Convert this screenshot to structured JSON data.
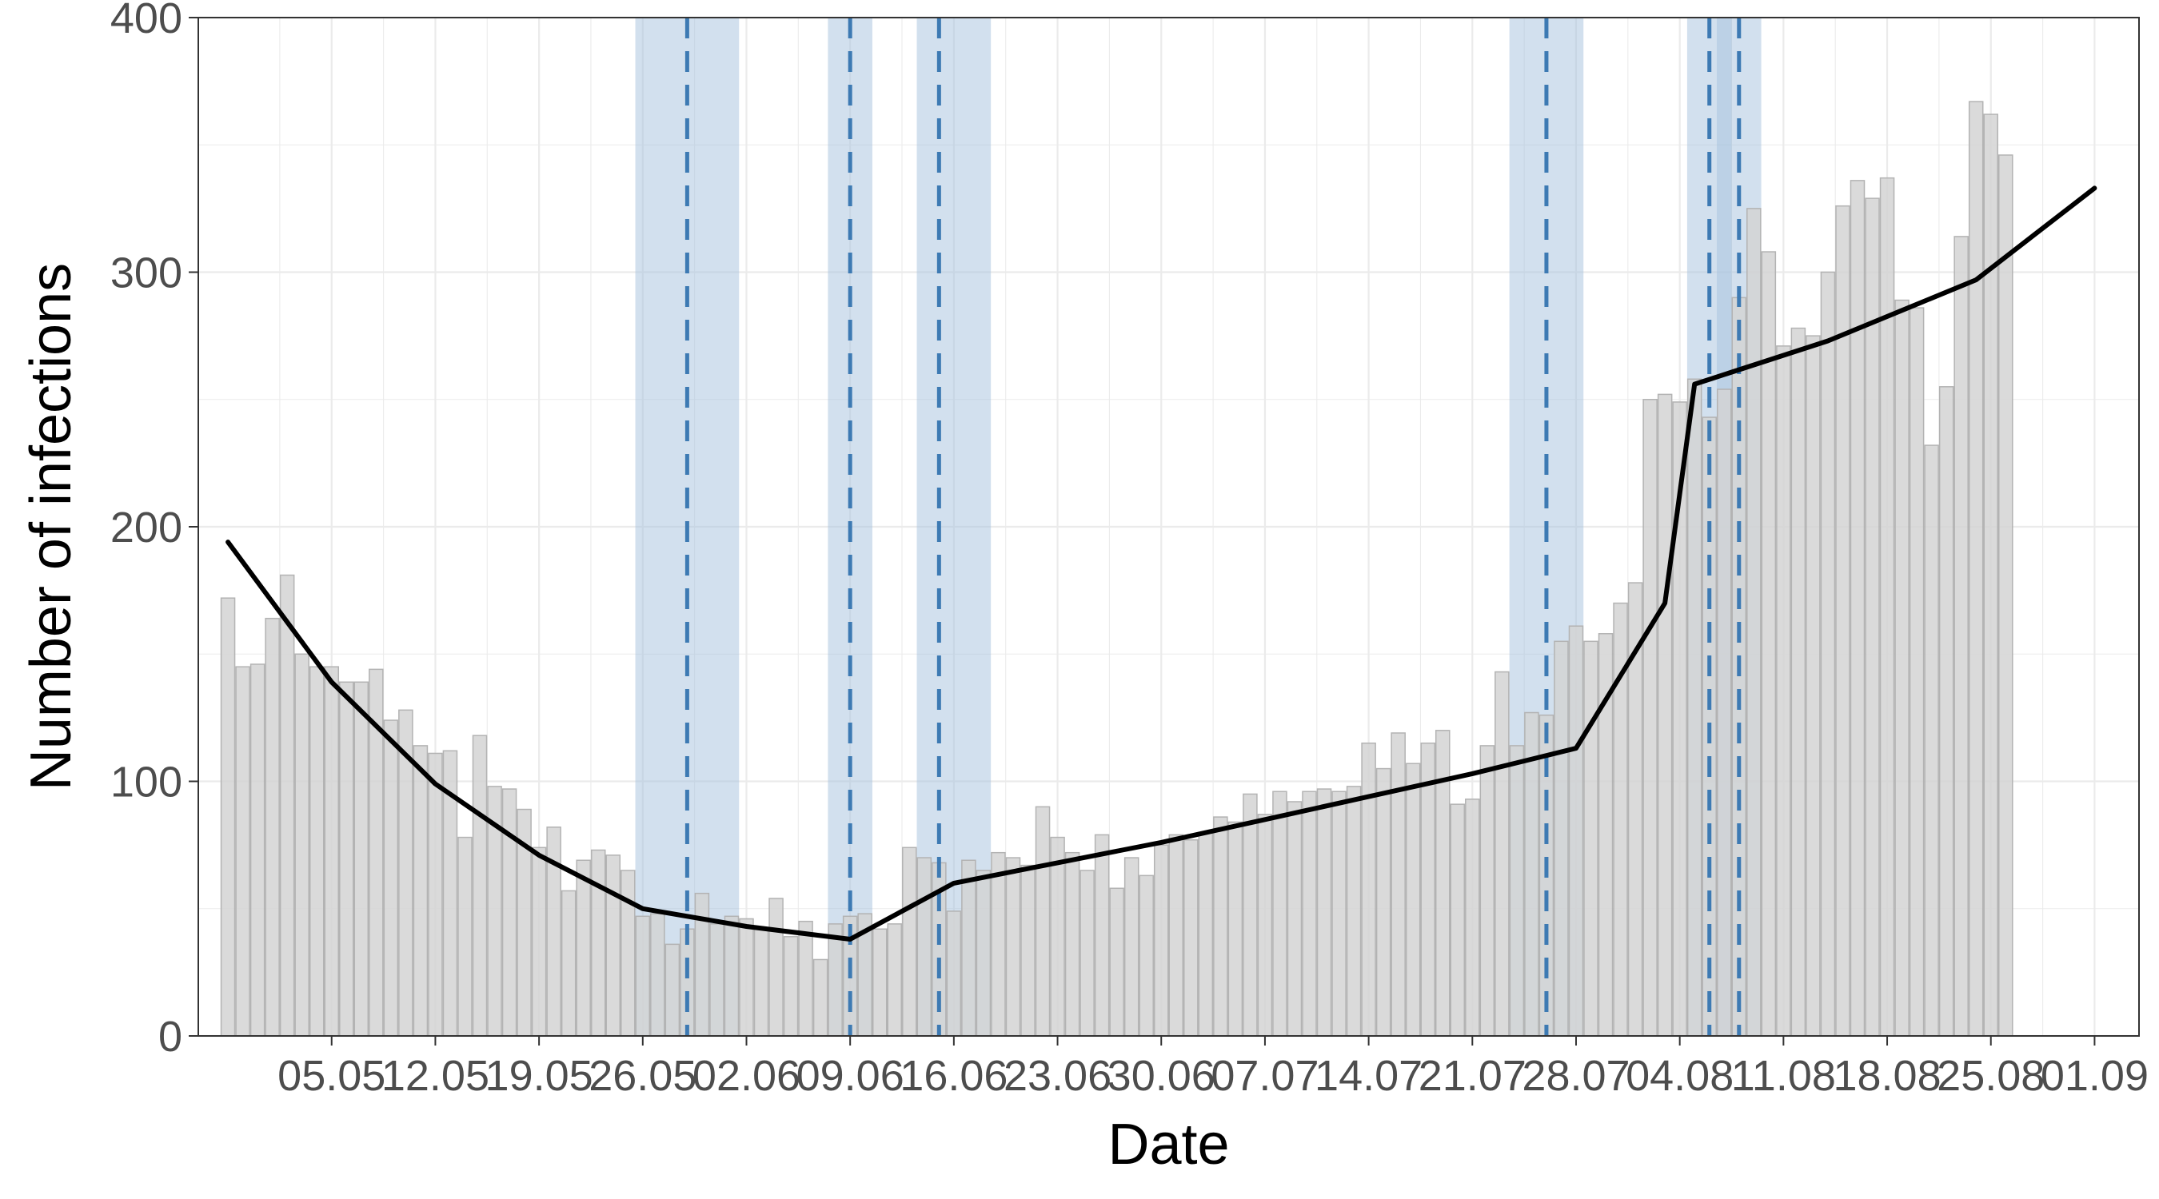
{
  "chart_data": {
    "type": "bar",
    "xlabel": "Date",
    "ylabel": "Number of infections",
    "ylim": [
      0,
      400
    ],
    "y_ticks": [
      0,
      100,
      200,
      300,
      400
    ],
    "x_ticks": [
      "05.05",
      "12.05",
      "19.05",
      "26.05",
      "02.06",
      "09.06",
      "16.06",
      "23.06",
      "30.06",
      "07.07",
      "14.07",
      "21.07",
      "28.07",
      "04.08",
      "11.08",
      "18.08",
      "25.08",
      "01.09"
    ],
    "x_range": [
      "2020-04-26",
      "2020-09-04"
    ],
    "grid": true,
    "bars": {
      "start_date": "2020-04-28",
      "values": [
        172,
        145,
        146,
        164,
        181,
        150,
        145,
        145,
        139,
        139,
        144,
        124,
        128,
        114,
        111,
        112,
        78,
        118,
        98,
        97,
        89,
        74,
        82,
        57,
        69,
        73,
        71,
        65,
        47,
        48,
        36,
        42,
        56,
        44,
        47,
        46,
        42,
        54,
        39,
        45,
        30,
        44,
        47,
        48,
        42,
        44,
        74,
        70,
        68,
        49,
        69,
        65,
        72,
        70,
        67,
        90,
        78,
        72,
        65,
        79,
        58,
        70,
        63,
        75,
        79,
        77,
        80,
        86,
        84,
        95,
        87,
        96,
        92,
        96,
        97,
        96,
        98,
        115,
        105,
        119,
        107,
        115,
        120,
        91,
        93,
        114,
        143,
        114,
        127,
        126,
        155,
        161,
        155,
        158,
        170,
        178,
        250,
        252,
        249,
        258,
        243,
        254,
        290,
        325,
        308,
        271,
        278,
        275,
        300,
        326,
        336,
        329,
        337,
        289,
        286,
        232,
        255,
        314,
        367,
        362,
        346
      ]
    },
    "trend_line": {
      "x": [
        "2020-04-28",
        "2020-05-05",
        "2020-05-12",
        "2020-05-19",
        "2020-05-26",
        "2020-06-02",
        "2020-06-09",
        "2020-06-16",
        "2020-06-23",
        "2020-06-30",
        "2020-07-07",
        "2020-07-14",
        "2020-07-21",
        "2020-07-28",
        "2020-08-03",
        "2020-08-05",
        "2020-08-14",
        "2020-08-24",
        "2020-09-01"
      ],
      "y": [
        194,
        139,
        99,
        71,
        50,
        43,
        38,
        60,
        68,
        76,
        85,
        94,
        103,
        113,
        170,
        256,
        273,
        297,
        333
      ]
    },
    "breakpoints": [
      {
        "date": "2020-05-29",
        "ci": [
          "2020-05-26",
          "2020-06-01"
        ]
      },
      {
        "date": "2020-06-09",
        "ci": [
          "2020-06-08",
          "2020-06-10"
        ]
      },
      {
        "date": "2020-06-15",
        "ci": [
          "2020-06-14",
          "2020-06-18"
        ]
      },
      {
        "date": "2020-07-26",
        "ci": [
          "2020-07-24",
          "2020-07-28"
        ]
      },
      {
        "date": "2020-08-06",
        "ci": [
          "2020-08-05",
          "2020-08-07"
        ]
      },
      {
        "date": "2020-08-08",
        "ci": [
          "2020-08-07",
          "2020-08-09"
        ]
      }
    ],
    "colors": {
      "bar_fill": "#d3d3d3",
      "bar_stroke": "#b3b3b3",
      "trend": "#000000",
      "breakpoint": "#3d7ab3",
      "ci_band": "#a6c2de",
      "grid": "#ebebeb",
      "panel_border": "#333333"
    }
  }
}
